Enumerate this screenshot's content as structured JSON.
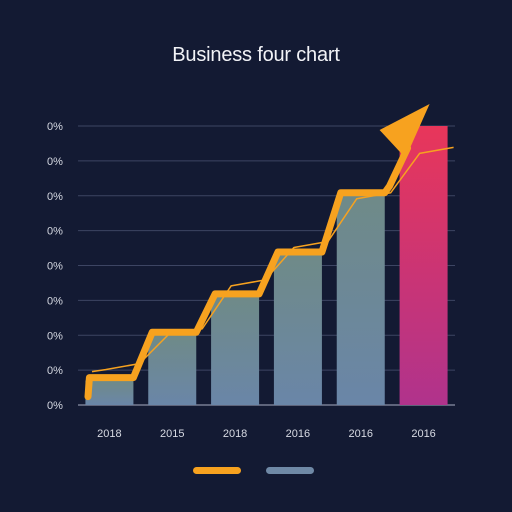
{
  "chart_data": {
    "type": "bar",
    "title": "Business four chart",
    "xlabel": "",
    "ylabel": "",
    "categories": [
      "2018",
      "2015",
      "2018",
      "2016",
      "2016",
      "2016"
    ],
    "y_tick_labels": [
      "0%",
      "0%",
      "0%",
      "0%",
      "0%",
      "0%",
      "0%",
      "0%",
      "0%"
    ],
    "ylim": [
      0,
      8
    ],
    "series": [
      {
        "values": [
          0.7,
          2.0,
          3.1,
          4.3,
          6.0,
          8.0
        ]
      },
      {
        "values": [
          0.9,
          1.9,
          3.3,
          4.4,
          5.8,
          7.1
        ]
      }
    ],
    "grid": true,
    "legend": {
      "placement": "bottom-center"
    },
    "colors": {
      "background": "#131a33",
      "bar_fill_top": "#6f8a88",
      "bar_fill_bottom": "#6a86a8",
      "highlight_bar_top": "#e8365a",
      "highlight_bar_bottom": "#b0338c",
      "trend_line": "#f7a21f",
      "legend_swatch_1": "#f7a21f",
      "legend_swatch_2": "#6f89a6"
    }
  }
}
